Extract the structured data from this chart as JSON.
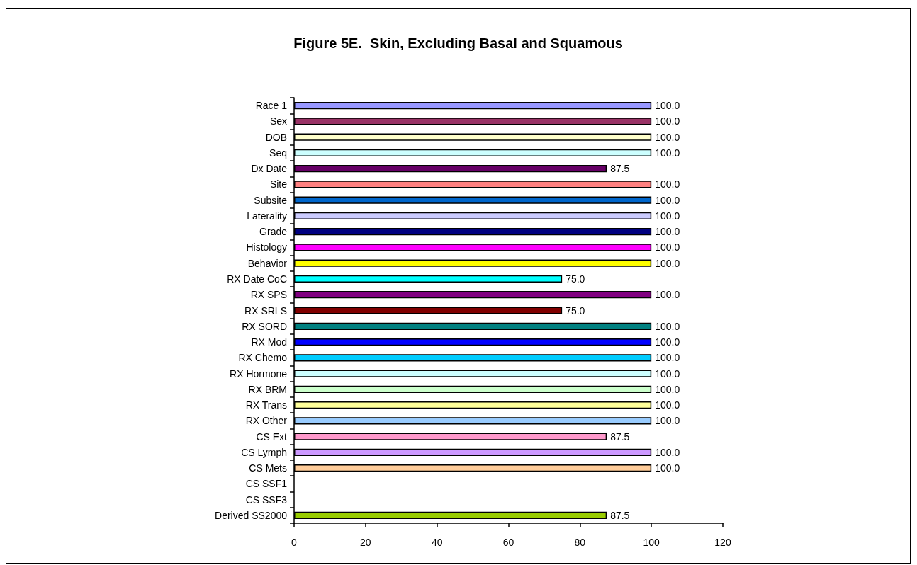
{
  "chart_data": {
    "type": "bar",
    "orientation": "horizontal",
    "title": "Figure 5E.  Skin, Excluding Basal and Squamous",
    "categories": [
      "Race 1",
      "Sex",
      "DOB",
      "Seq",
      "Dx Date",
      "Site",
      "Subsite",
      "Laterality",
      "Grade",
      "Histology",
      "Behavior",
      "RX Date CoC",
      "RX SPS",
      "RX SRLS",
      "RX SORD",
      "RX Mod",
      "RX Chemo",
      "RX Hormone",
      "RX BRM",
      "RX Trans",
      "RX Other",
      "CS Ext",
      "CS Lymph",
      "CS Mets",
      "CS SSF1",
      "CS SSF3",
      "Derived SS2000"
    ],
    "values": [
      100,
      100,
      100,
      100,
      87.5,
      100,
      100,
      100,
      100,
      100,
      100,
      75,
      100,
      75,
      100,
      100,
      100,
      100,
      100,
      100,
      100,
      87.5,
      100,
      100,
      null,
      null,
      87.5
    ],
    "value_labels": [
      "100.0",
      "100.0",
      "100.0",
      "100.0",
      "87.5",
      "100.0",
      "100.0",
      "100.0",
      "100.0",
      "100.0",
      "100.0",
      "75.0",
      "100.0",
      "75.0",
      "100.0",
      "100.0",
      "100.0",
      "100.0",
      "100.0",
      "100.0",
      "100.0",
      "87.5",
      "100.0",
      "100.0",
      null,
      null,
      "87.5"
    ],
    "colors": [
      "#9999ff",
      "#993366",
      "#ffffcc",
      "#ccffff",
      "#660066",
      "#ff8080",
      "#0066cc",
      "#ccccff",
      "#000080",
      "#ff00ff",
      "#ffff00",
      "#00ffff",
      "#800080",
      "#800000",
      "#008080",
      "#0000ff",
      "#00ccff",
      "#ccffff",
      "#ccffcc",
      "#ffff99",
      "#99ccff",
      "#ff99cc",
      "#cc99ff",
      "#ffcc99",
      null,
      null,
      "#99cc00"
    ],
    "xlim": [
      0,
      120
    ],
    "xticks": [
      0,
      20,
      40,
      60,
      80,
      100,
      120
    ],
    "grid": false
  }
}
